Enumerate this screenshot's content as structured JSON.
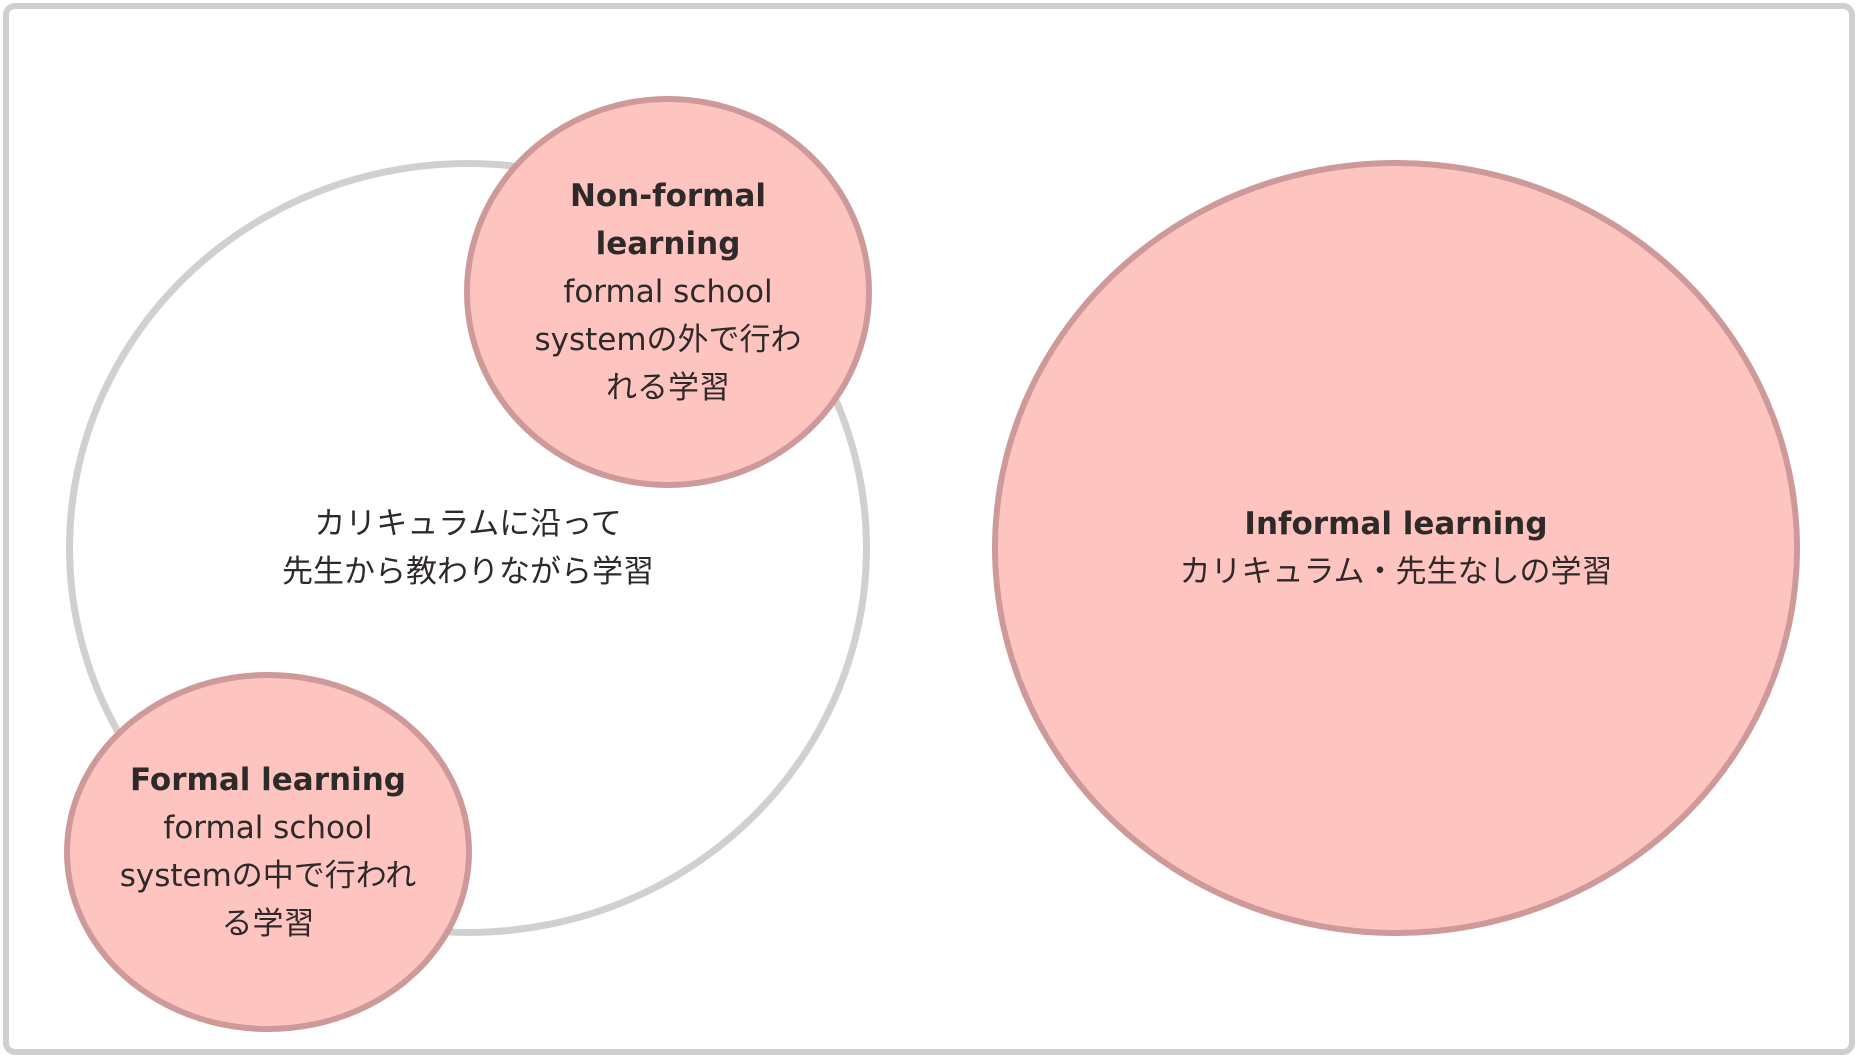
{
  "diagram": {
    "nodes": {
      "classroom": {
        "lines": [
          "カリキュラムに沿って",
          "先生から教わりながら学習"
        ]
      },
      "non_formal": {
        "title": "Non-formal learning",
        "description": "formal school systemの外で行われる学習"
      },
      "formal": {
        "title": "Formal learning",
        "description": "formal school systemの中で行われる学習"
      },
      "informal": {
        "title": "Informal learning",
        "description": "カリキュラム・先生なしの学習"
      }
    }
  },
  "colors": {
    "bubble_fill": "#fec4c0",
    "bubble_border": "#cd9a99",
    "ring_border": "#d0d0d0",
    "frame_border": "#cfcfcf",
    "text": "#2f2a2a"
  }
}
